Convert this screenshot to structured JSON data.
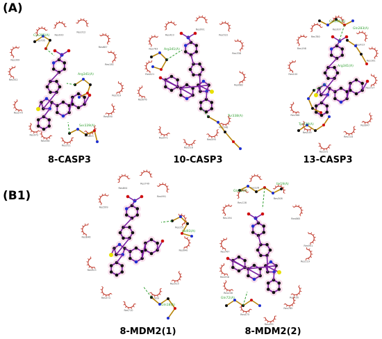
{
  "panels": {
    "a_label": "(A)",
    "b_label": "(B1)"
  },
  "captions": {
    "casp3_8": "8-CASP3",
    "casp3_10": "10-CASP3",
    "casp3_13": "13-CASP3",
    "mdm2_1": "8-MDM2(1)",
    "mdm2_2": "8-MDM2(2)"
  },
  "residues": {
    "d1": [
      "Cys285(A)",
      "Arg341(A)",
      "Ser339(A)"
    ],
    "d2": [
      "Arg341(A)",
      "Tyr338(A)"
    ],
    "d3": [
      "Cys285(A)",
      "Gln283(A)",
      "Arg341(A)",
      "Tyr338(A)"
    ],
    "d4": [
      "Val93(A)",
      "Gln18(A)"
    ],
    "d5": [
      "Ile19(A)",
      "Gln18(A)",
      "Gln72(A)"
    ]
  },
  "colors": {
    "bond": "#7a1fa0",
    "carbon": "#111111",
    "nitrogen": "#1f2fd0",
    "oxygen": "#d01010",
    "sulfur": "#e8e000",
    "hbond": "#2e9e2e",
    "hydrophobic": "#c0392b",
    "residue_bond": "#b8860b"
  }
}
